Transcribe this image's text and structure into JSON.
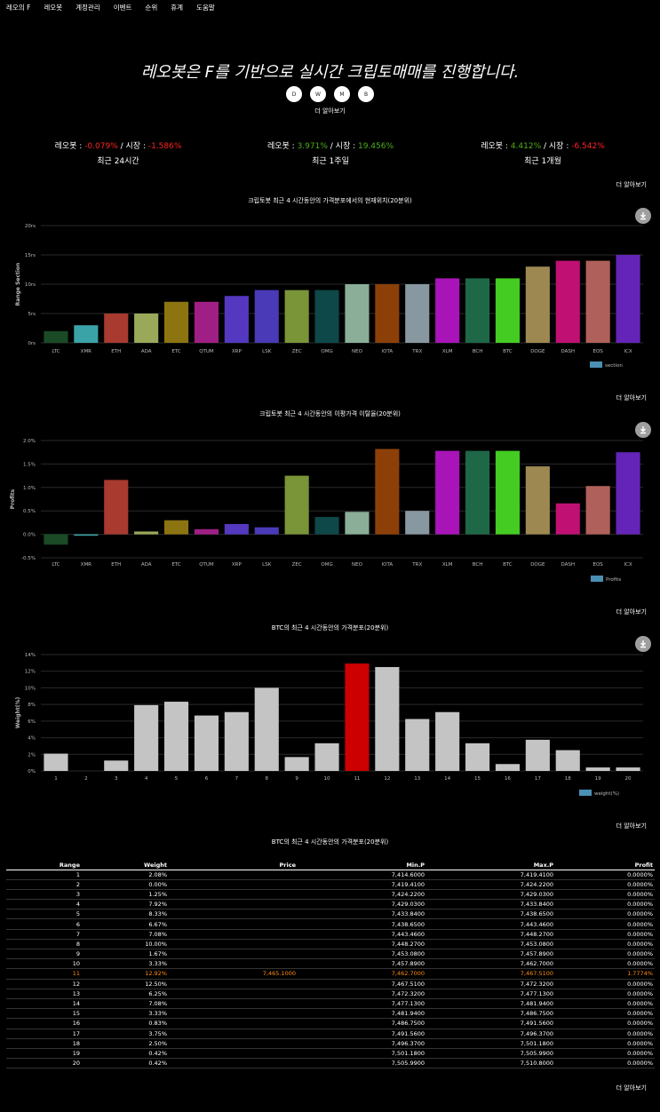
{
  "nav": {
    "items": [
      "레오의 F",
      "레오봇",
      "계정관리",
      "이벤트",
      "순위",
      "휴계",
      "도움말"
    ]
  },
  "hero": {
    "title": "레오봇은 F를 기반으로 실시간 크립토매매를 진행합니다.",
    "social": [
      {
        "icon": "document-icon",
        "glyph": "D"
      },
      {
        "icon": "w-icon",
        "glyph": "W"
      },
      {
        "icon": "mail-icon",
        "glyph": "M"
      },
      {
        "icon": "b-icon",
        "glyph": "B"
      }
    ],
    "more": "더 알아보기"
  },
  "stats": [
    {
      "bot_label": "레오봇 : ",
      "bot_value": "-0.079%",
      "sep": " / 시장 : ",
      "market_value": "-1.586%",
      "period": "최근 24시간",
      "bot_color": "#ff2222",
      "market_color": "#ff2222"
    },
    {
      "bot_label": "레오봇 : ",
      "bot_value": "3.971%",
      "sep": " / 시장 : ",
      "market_value": "19.456%",
      "period": "최근 1주일",
      "bot_color": "#4caf1a",
      "market_color": "#4caf1a"
    },
    {
      "bot_label": "레오봇 : ",
      "bot_value": "4.412%",
      "sep": " / 시장 : ",
      "market_value": "-6.542%",
      "period": "최근 1개월",
      "bot_color": "#4caf1a",
      "market_color": "#ff2222"
    }
  ],
  "more_label": "더 알아보기",
  "colors": {
    "LTC": "#1a4a26",
    "XMR": "#3aa3a8",
    "ETH": "#a83a30",
    "ADA": "#9aa85a",
    "ETC": "#8c7410",
    "QTUM": "#a01f85",
    "XRP": "#5538c0",
    "LSK": "#4a3ab8",
    "ZEC": "#7a9438",
    "OMG": "#0e4848",
    "NEO": "#8aae98",
    "IOTA": "#8c4008",
    "TRX": "#8898a0",
    "XLM": "#a814b8",
    "BCH": "#1e6848",
    "BTC": "#44cc22",
    "DOGE": "#9c8850",
    "DASH": "#c01074",
    "EOS": "#b0605a",
    "ICX": "#6424b8",
    "legend": "#4a90b4",
    "gray_bar": "#c4c4c4",
    "highlight_bar": "#cc0000"
  },
  "chart_data": [
    {
      "type": "bar",
      "title": "크립토봇 최근 4 시간동안의 가격분포에서의 현재위치(20분위)",
      "categories": [
        "LTC",
        "XMR",
        "ETH",
        "ADA",
        "ETC",
        "QTUM",
        "XRP",
        "LSK",
        "ZEC",
        "OMG",
        "NEO",
        "IOTA",
        "TRX",
        "XLM",
        "BCH",
        "BTC",
        "DOGE",
        "DASH",
        "EOS",
        "ICX"
      ],
      "series": [
        {
          "name": "section",
          "values": [
            2,
            3,
            5,
            5,
            7,
            7,
            8,
            9,
            9,
            9,
            10,
            10,
            10,
            11,
            11,
            11,
            13,
            14,
            14,
            15
          ]
        }
      ],
      "ylabel": "Range Section",
      "yticks": [
        "0rs",
        "5rs",
        "10rs",
        "15rs",
        "20rs"
      ],
      "ylim": [
        0,
        20
      ],
      "legend": "bottom-right",
      "grid": true
    },
    {
      "type": "bar",
      "title": "크립토봇 최근 4 시간동안의 이평가격 이탈율(20분위)",
      "categories": [
        "LTC",
        "XMR",
        "ETH",
        "ADA",
        "ETC",
        "QTUM",
        "XRP",
        "LSK",
        "ZEC",
        "OMG",
        "NEO",
        "IOTA",
        "TRX",
        "XLM",
        "BCH",
        "BTC",
        "DOGE",
        "DASH",
        "EOS",
        "ICX"
      ],
      "series": [
        {
          "name": "Profits",
          "values": [
            -0.22,
            -0.03,
            1.16,
            0.06,
            0.3,
            0.11,
            0.22,
            0.15,
            1.25,
            0.37,
            0.48,
            1.82,
            0.5,
            1.78,
            1.78,
            1.78,
            1.45,
            0.66,
            1.03,
            1.75
          ]
        }
      ],
      "ylabel": "Profits",
      "yticks": [
        "-0.5%",
        "0.0%",
        "0.5%",
        "1.0%",
        "1.5%",
        "2.0%"
      ],
      "ylim": [
        -0.5,
        2.0
      ],
      "legend": "bottom-right",
      "grid": true
    },
    {
      "type": "bar",
      "title": "BTC의 최근 4 시간동안의 가격분포(20분위)",
      "categories": [
        "1",
        "2",
        "3",
        "4",
        "5",
        "6",
        "7",
        "8",
        "9",
        "10",
        "11",
        "12",
        "13",
        "14",
        "15",
        "16",
        "17",
        "18",
        "19",
        "20"
      ],
      "series": [
        {
          "name": "weight(%)",
          "values": [
            2.08,
            0.0,
            1.25,
            7.92,
            8.33,
            6.67,
            7.08,
            10.0,
            1.67,
            3.33,
            12.92,
            12.5,
            6.25,
            7.08,
            3.33,
            0.83,
            3.75,
            2.5,
            0.42,
            0.42
          ]
        }
      ],
      "highlight_index": 10,
      "ylabel": "Weight(%)",
      "yticks": [
        "0%",
        "2%",
        "4%",
        "6%",
        "8%",
        "10%",
        "12%",
        "14%"
      ],
      "ylim": [
        0,
        14
      ],
      "legend": "bottom-right",
      "grid": true
    }
  ],
  "table": {
    "title": "BTC의 최근 4 시간동안의 가격분포(20분위)",
    "headers": [
      "Range",
      "Weight",
      "Price",
      "Min.P",
      "Max.P",
      "Profit"
    ],
    "rows": [
      [
        "1",
        "2.08%",
        "",
        "7,414.6000",
        "7,419.4100",
        "0.0000%"
      ],
      [
        "2",
        "0.00%",
        "",
        "7,419.4100",
        "7,424.2200",
        "0.0000%"
      ],
      [
        "3",
        "1.25%",
        "",
        "7,424.2200",
        "7,429.0300",
        "0.0000%"
      ],
      [
        "4",
        "7.92%",
        "",
        "7,429.0300",
        "7,433.8400",
        "0.0000%"
      ],
      [
        "5",
        "8.33%",
        "",
        "7,433.8400",
        "7,438.6500",
        "0.0000%"
      ],
      [
        "6",
        "6.67%",
        "",
        "7,438.6500",
        "7,443.4600",
        "0.0000%"
      ],
      [
        "7",
        "7.08%",
        "",
        "7,443.4600",
        "7,448.2700",
        "0.0000%"
      ],
      [
        "8",
        "10.00%",
        "",
        "7,448.2700",
        "7,453.0800",
        "0.0000%"
      ],
      [
        "9",
        "1.67%",
        "",
        "7,453.0800",
        "7,457.8900",
        "0.0000%"
      ],
      [
        "10",
        "3.33%",
        "",
        "7,457.8900",
        "7,462.7000",
        "0.0000%"
      ],
      [
        "11",
        "12.92%",
        "7,465.1000",
        "7,462.7000",
        "7,467.5100",
        "1.7774%"
      ],
      [
        "12",
        "12.50%",
        "",
        "7,467.5100",
        "7,472.3200",
        "0.0000%"
      ],
      [
        "13",
        "6.25%",
        "",
        "7,472.3200",
        "7,477.1300",
        "0.0000%"
      ],
      [
        "14",
        "7.08%",
        "",
        "7,477.1300",
        "7,481.9400",
        "0.0000%"
      ],
      [
        "15",
        "3.33%",
        "",
        "7,481.9400",
        "7,486.7500",
        "0.0000%"
      ],
      [
        "16",
        "0.83%",
        "",
        "7,486.7500",
        "7,491.5600",
        "0.0000%"
      ],
      [
        "17",
        "3.75%",
        "",
        "7,491.5600",
        "7,496.3700",
        "0.0000%"
      ],
      [
        "18",
        "2.50%",
        "",
        "7,496.3700",
        "7,501.1800",
        "0.0000%"
      ],
      [
        "19",
        "0.42%",
        "",
        "7,501.1800",
        "7,505.9900",
        "0.0000%"
      ],
      [
        "20",
        "0.42%",
        "",
        "7,505.9900",
        "7,510.8000",
        "0.0000%"
      ]
    ],
    "highlight_row": 10
  }
}
